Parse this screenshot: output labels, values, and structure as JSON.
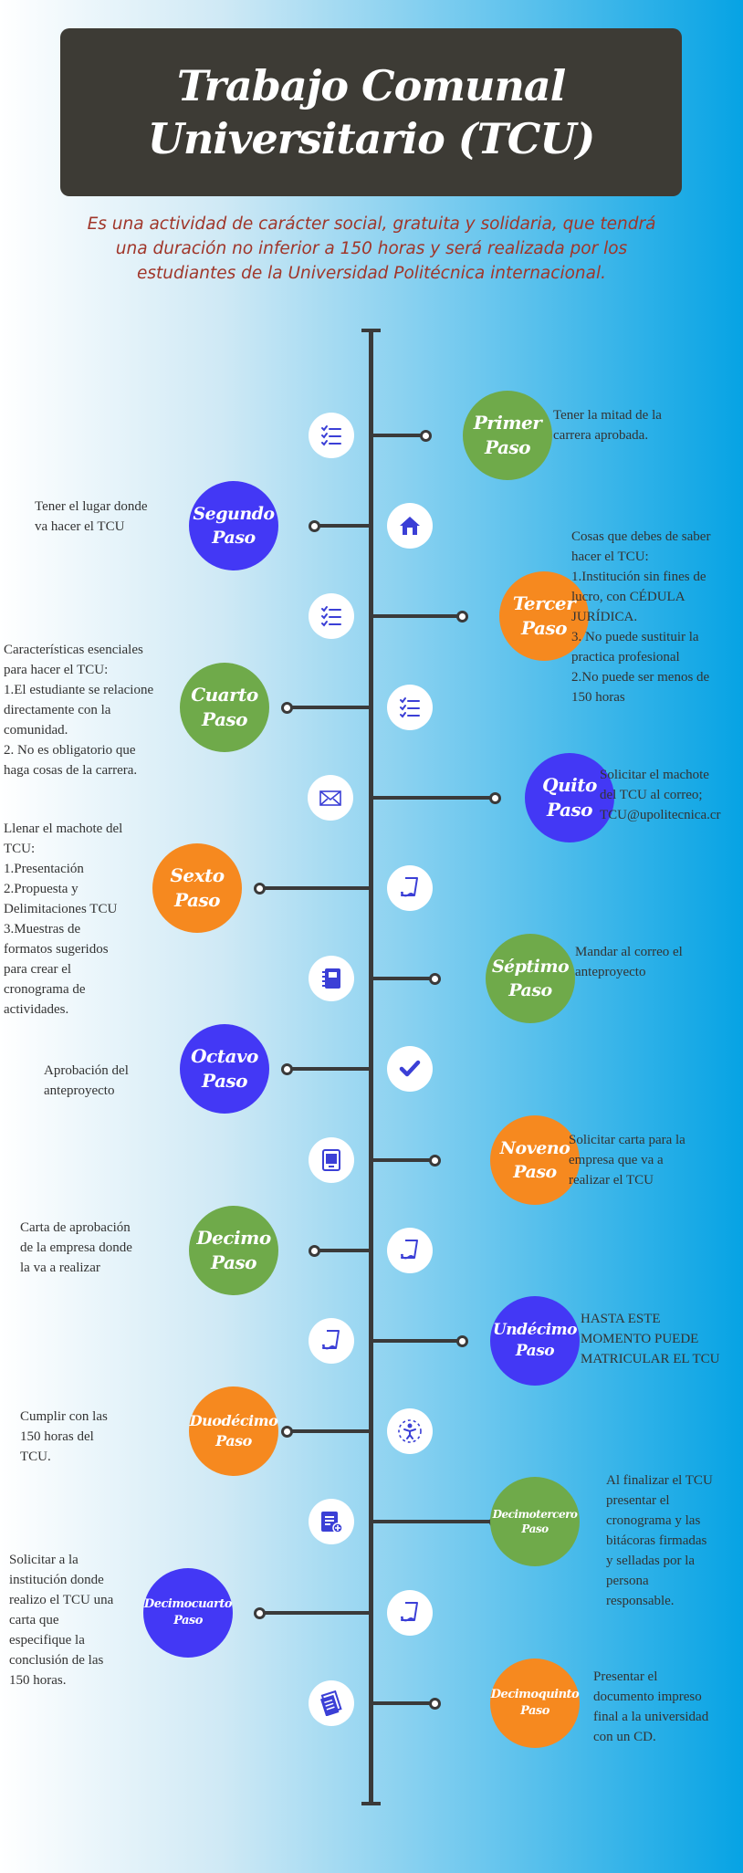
{
  "header": {
    "title_line1": "Trabajo Comunal",
    "title_line2": "Universitario (TCU)",
    "subtitle": "Es una actividad de carácter social, gratuita y solidaria, que tendrá una duración no inferior a 150 horas y será realizada por los estudiantes de la Universidad Politécnica internacional."
  },
  "colors": {
    "green": "#6faa4a",
    "blue": "#4338f5",
    "orange": "#f6891f",
    "banner": "#3d3b35",
    "subtitle": "#a0362a",
    "icon": "#3b3fd6"
  },
  "steps": [
    {
      "line1": "Primer",
      "line2": "Paso",
      "description": "Tener la mitad de la\ncarrera aprobada.",
      "color": "green",
      "icon": "checklist-icon"
    },
    {
      "line1": "Segundo",
      "line2": "Paso",
      "description": "Tener el lugar donde\nva hacer el TCU",
      "color": "blue",
      "icon": "house-icon"
    },
    {
      "line1": "Tercer",
      "line2": "Paso",
      "description": "Cosas que debes de saber\nhacer el TCU:\n1.Institución sin fines de\nlucro, con CÉDULA\nJURÍDICA.\n3. No puede sustituir la\npractica profesional\n2.No puede ser menos de\n150 horas",
      "color": "orange",
      "icon": "checklist-icon"
    },
    {
      "line1": "Cuarto",
      "line2": "Paso",
      "description": "Características esenciales\npara hacer el TCU:\n1.El estudiante se relacione\ndirectamente con la\ncomunidad.\n2. No es obligatorio que\nhaga cosas de la carrera.",
      "color": "green",
      "icon": "checklist-icon"
    },
    {
      "line1": "Quito",
      "line2": "Paso",
      "description": "Solicitar el machote\ndel TCU al correo;\nTCU@upolitecnica.cr",
      "color": "blue",
      "icon": "envelope-icon"
    },
    {
      "line1": "Sexto",
      "line2": "Paso",
      "description": "Llenar el machote del\nTCU:\n1.Presentación\n2.Propuesta y\nDelimitaciones TCU\n3.Muestras de\nformatos sugeridos\npara crear el\ncronograma de\nactividades.",
      "color": "orange",
      "icon": "note-icon"
    },
    {
      "line1": "Séptimo",
      "line2": "Paso",
      "description": "Mandar al correo el\nanteproyecto",
      "color": "green",
      "icon": "notebook-icon"
    },
    {
      "line1": "Octavo",
      "line2": "Paso",
      "description": "Aprobación del\nanteproyecto",
      "color": "blue",
      "icon": "check-badge-icon"
    },
    {
      "line1": "Noveno",
      "line2": "Paso",
      "description": "Solicitar carta para la\nempresa que va a\nrealizar el TCU",
      "color": "orange",
      "icon": "tablet-icon"
    },
    {
      "line1": "Decimo",
      "line2": "Paso",
      "description": "Carta de aprobación\nde la empresa donde\nla va a realizar",
      "color": "green",
      "icon": "note-icon"
    },
    {
      "line1": "Undécimo",
      "line2": "Paso",
      "description": "HASTA ESTE\nMOMENTO PUEDE\nMATRICULAR EL TCU",
      "color": "blue",
      "icon": "note-icon"
    },
    {
      "line1": "Duodécimo",
      "line2": "Paso",
      "description": "Cumplir con las\n150 horas del\nTCU.",
      "color": "orange",
      "icon": "person-icon"
    },
    {
      "line1": "Decimotercero",
      "line2": "Paso",
      "description": "Al finalizar el TCU\npresentar el\ncronograma y las\nbitácoras firmadas\ny selladas por la\npersona\nresponsable.",
      "color": "green",
      "icon": "document-add-icon"
    },
    {
      "line1": "Decimocuarto",
      "line2": "Paso",
      "description": "Solicitar a la\ninstitución donde\nrealizo el TCU una\ncarta que\nespecifique la\nconclusión de las\n150 horas.",
      "color": "blue",
      "icon": "note-icon"
    },
    {
      "line1": "Decimoquinto",
      "line2": "Paso",
      "description": "Presentar el\ndocumento impreso\nfinal a la universidad\ncon un CD.",
      "color": "orange",
      "icon": "documents-icon"
    }
  ]
}
